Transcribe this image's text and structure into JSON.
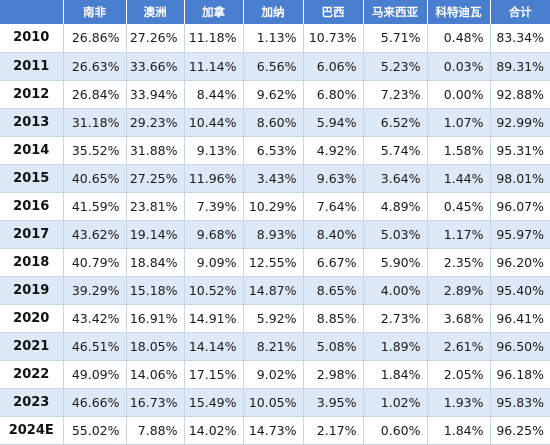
{
  "table": {
    "headers": [
      "",
      "南非",
      "澳洲",
      "加拿",
      "加纳",
      "巴西",
      "马来西亚",
      "科特迪瓦",
      "合计"
    ],
    "rows": [
      [
        "2010",
        "26.86%",
        "27.26%",
        "11.18%",
        "1.13%",
        "10.73%",
        "5.71%",
        "0.48%",
        "83.34%"
      ],
      [
        "2011",
        "26.63%",
        "33.66%",
        "11.14%",
        "6.56%",
        "6.06%",
        "5.23%",
        "0.03%",
        "89.31%"
      ],
      [
        "2012",
        "26.84%",
        "33.94%",
        "8.44%",
        "9.62%",
        "6.80%",
        "7.23%",
        "0.00%",
        "92.88%"
      ],
      [
        "2013",
        "31.18%",
        "29.23%",
        "10.44%",
        "8.60%",
        "5.94%",
        "6.52%",
        "1.07%",
        "92.99%"
      ],
      [
        "2014",
        "35.52%",
        "31.88%",
        "9.13%",
        "6.53%",
        "4.92%",
        "5.74%",
        "1.58%",
        "95.31%"
      ],
      [
        "2015",
        "40.65%",
        "27.25%",
        "11.96%",
        "3.43%",
        "9.63%",
        "3.64%",
        "1.44%",
        "98.01%"
      ],
      [
        "2016",
        "41.59%",
        "23.81%",
        "7.39%",
        "10.29%",
        "7.64%",
        "4.89%",
        "0.45%",
        "96.07%"
      ],
      [
        "2017",
        "43.62%",
        "19.14%",
        "9.68%",
        "8.93%",
        "8.40%",
        "5.03%",
        "1.17%",
        "95.97%"
      ],
      [
        "2018",
        "40.79%",
        "18.84%",
        "9.09%",
        "12.55%",
        "6.67%",
        "5.90%",
        "2.35%",
        "96.20%"
      ],
      [
        "2019",
        "39.29%",
        "15.18%",
        "10.52%",
        "14.87%",
        "8.65%",
        "4.00%",
        "2.89%",
        "95.40%"
      ],
      [
        "2020",
        "43.42%",
        "16.91%",
        "14.91%",
        "5.92%",
        "8.85%",
        "2.73%",
        "3.68%",
        "96.41%"
      ],
      [
        "2021",
        "46.51%",
        "18.05%",
        "14.14%",
        "8.21%",
        "5.08%",
        "1.89%",
        "2.61%",
        "96.50%"
      ],
      [
        "2022",
        "49.09%",
        "14.06%",
        "17.15%",
        "9.02%",
        "2.98%",
        "1.84%",
        "2.05%",
        "96.18%"
      ],
      [
        "2023",
        "46.66%",
        "16.73%",
        "15.49%",
        "10.05%",
        "3.95%",
        "1.02%",
        "1.93%",
        "95.83%"
      ],
      [
        "2024E",
        "55.02%",
        "7.88%",
        "14.02%",
        "14.73%",
        "2.17%",
        "0.60%",
        "1.84%",
        "96.25%"
      ]
    ]
  },
  "colors": {
    "header_bg": "#4a7fd0",
    "header_text": "#ffffff",
    "row_alt_bg": "#dde9f6",
    "grid_line": "#c8d6e8"
  }
}
